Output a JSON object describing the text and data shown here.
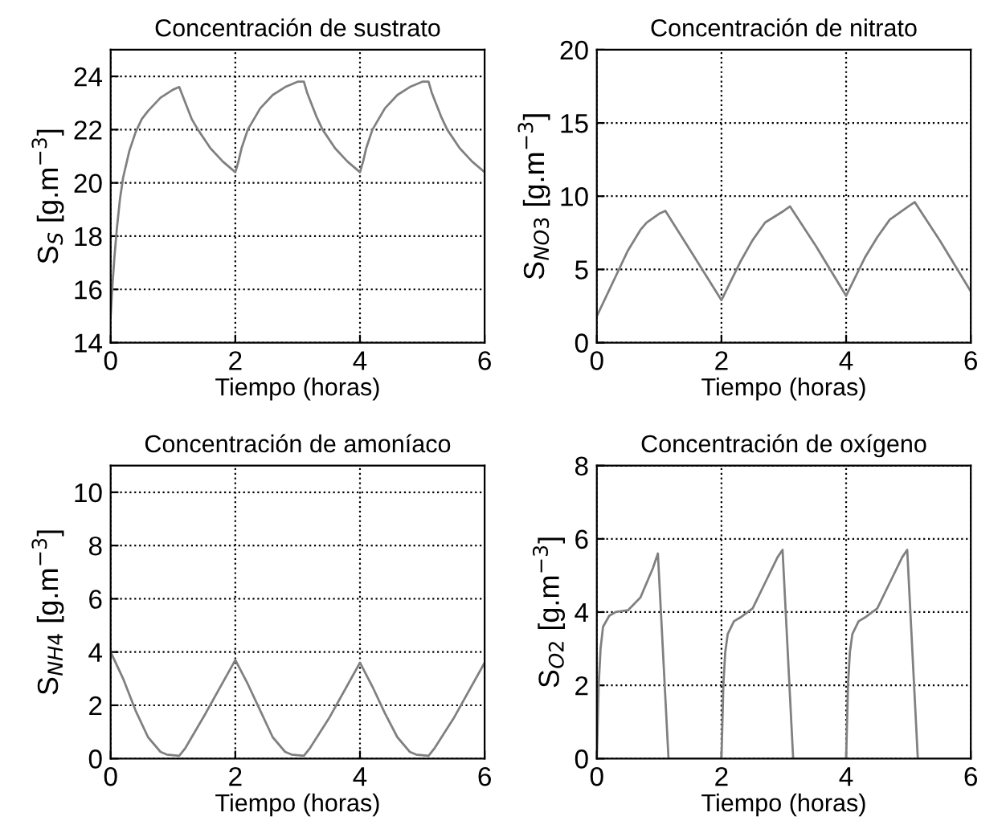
{
  "chart_data": [
    {
      "type": "line",
      "title": "Concentración de sustrato",
      "xlabel": "Tiempo (horas)",
      "ylabel": "S$_{S}$ [g.m$^{−3}$]",
      "xlim": [
        0,
        6
      ],
      "ylim": [
        14,
        25
      ],
      "xticks": [
        0,
        2,
        4,
        6
      ],
      "yticks": [
        14,
        16,
        18,
        20,
        22,
        24
      ],
      "grid": true,
      "line_style": "solid",
      "series": [
        {
          "color": "#808080",
          "x": [
            0,
            0.03,
            0.06,
            0.1,
            0.15,
            0.2,
            0.3,
            0.4,
            0.5,
            0.6,
            0.8,
            1.0,
            1.1,
            1.15,
            1.2,
            1.3,
            1.4,
            1.6,
            1.8,
            2.0,
            2.05,
            2.1,
            2.2,
            2.4,
            2.6,
            2.8,
            3.0,
            3.1,
            3.15,
            3.2,
            3.3,
            3.4,
            3.6,
            3.8,
            4.0,
            4.05,
            4.1,
            4.2,
            4.4,
            4.6,
            4.8,
            5.0,
            5.1,
            5.15,
            5.2,
            5.3,
            5.4,
            5.6,
            5.8,
            6.0
          ],
          "values": [
            15,
            16.2,
            17.2,
            18.3,
            19.4,
            20.2,
            21.2,
            21.9,
            22.4,
            22.7,
            23.2,
            23.5,
            23.6,
            23.3,
            23.0,
            22.4,
            22.0,
            21.3,
            20.8,
            20.4,
            20.8,
            21.3,
            22.0,
            22.8,
            23.3,
            23.6,
            23.8,
            23.8,
            23.4,
            23.1,
            22.5,
            22.0,
            21.3,
            20.8,
            20.4,
            20.8,
            21.3,
            22.0,
            22.8,
            23.3,
            23.6,
            23.8,
            23.8,
            23.4,
            23.1,
            22.5,
            22.0,
            21.3,
            20.8,
            20.4
          ]
        }
      ]
    },
    {
      "type": "line",
      "title": "Concentración de nitrato",
      "xlabel": "Tiempo (horas)",
      "ylabel": "S$_{NO3}$ [g.m$^{−3}$]",
      "xlim": [
        0,
        6
      ],
      "ylim": [
        0,
        20
      ],
      "xticks": [
        0,
        2,
        4,
        6
      ],
      "yticks": [
        0,
        5,
        10,
        15,
        20
      ],
      "grid": true,
      "line_style": "solid",
      "series": [
        {
          "color": "#808080",
          "x": [
            0,
            0.3,
            0.5,
            0.7,
            0.8,
            1.0,
            1.1,
            1.5,
            2.0,
            2.3,
            2.5,
            2.7,
            3.0,
            3.1,
            3.5,
            4.0,
            4.3,
            4.5,
            4.7,
            5.0,
            5.1,
            5.5,
            6.0
          ],
          "values": [
            1.8,
            4.5,
            6.3,
            7.7,
            8.2,
            8.8,
            9.0,
            6.3,
            2.9,
            5.5,
            7.0,
            8.2,
            9.0,
            9.3,
            6.7,
            3.2,
            5.8,
            7.2,
            8.4,
            9.3,
            9.6,
            7.0,
            3.5
          ]
        }
      ]
    },
    {
      "type": "line",
      "title": "Concentración de amoníaco",
      "xlabel": "Tiempo (horas)",
      "ylabel": "S$_{NH4}$ [g.m$^{−3}$]",
      "xlim": [
        0,
        6
      ],
      "ylim": [
        0,
        11
      ],
      "xticks": [
        0,
        2,
        4,
        6
      ],
      "yticks": [
        0,
        2,
        4,
        6,
        8,
        10
      ],
      "grid": true,
      "line_style": "solid",
      "series": [
        {
          "color": "#808080",
          "x": [
            0,
            0.2,
            0.4,
            0.6,
            0.8,
            0.9,
            1.1,
            1.2,
            1.5,
            2.0,
            2.2,
            2.4,
            2.6,
            2.8,
            2.9,
            3.1,
            3.2,
            3.5,
            4.0,
            4.2,
            4.4,
            4.6,
            4.8,
            4.9,
            5.1,
            5.2,
            5.5,
            6.0
          ],
          "values": [
            4.0,
            3.0,
            1.8,
            0.8,
            0.25,
            0.15,
            0.1,
            0.4,
            1.6,
            3.7,
            2.8,
            1.8,
            0.8,
            0.25,
            0.15,
            0.1,
            0.4,
            1.5,
            3.6,
            2.7,
            1.7,
            0.8,
            0.25,
            0.15,
            0.1,
            0.4,
            1.5,
            3.6
          ]
        }
      ]
    },
    {
      "type": "line",
      "title": "Concentración de oxígeno",
      "xlabel": "Tiempo (horas)",
      "ylabel": "S$_{O2}$ [g.m$^{−3}$]",
      "xlim": [
        0,
        6
      ],
      "ylim": [
        0,
        8
      ],
      "xticks": [
        0,
        2,
        4,
        6
      ],
      "yticks": [
        0,
        2,
        4,
        6,
        8
      ],
      "grid": true,
      "line_style": "solid",
      "series": [
        {
          "color": "#808080",
          "x": [
            0,
            0.03,
            0.06,
            0.1,
            0.2,
            0.3,
            0.5,
            0.7,
            0.9,
            0.98,
            1.15,
            2.0,
            2.03,
            2.06,
            2.1,
            2.2,
            2.3,
            2.5,
            2.7,
            2.9,
            2.98,
            3.15,
            4.0,
            4.03,
            4.06,
            4.1,
            4.2,
            4.3,
            4.5,
            4.7,
            4.9,
            4.98,
            5.15,
            6.0
          ],
          "values": [
            0,
            2.0,
            3.0,
            3.6,
            3.9,
            4.0,
            4.05,
            4.4,
            5.2,
            5.6,
            0,
            0,
            2.0,
            2.9,
            3.4,
            3.75,
            3.85,
            4.1,
            4.8,
            5.5,
            5.7,
            0,
            0,
            2.0,
            2.9,
            3.4,
            3.75,
            3.85,
            4.1,
            4.8,
            5.5,
            5.7,
            0,
            0
          ]
        }
      ]
    }
  ]
}
